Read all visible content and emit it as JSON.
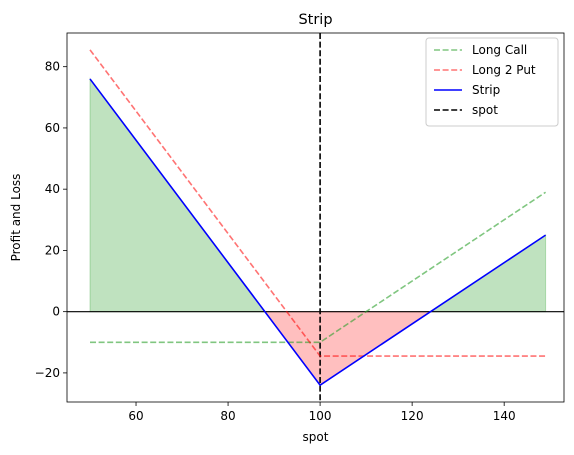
{
  "chart_data": {
    "type": "line",
    "title": "Strip",
    "xlabel": "spot",
    "ylabel": "Profit and Loss",
    "xlim": [
      45,
      153
    ],
    "ylim": [
      -29.5,
      91
    ],
    "xticks": [
      60,
      80,
      100,
      120,
      140
    ],
    "yticks": [
      -20,
      0,
      20,
      40,
      60,
      80
    ],
    "grid": false,
    "legend_position": "top-right",
    "spot": 100,
    "series": [
      {
        "name": "Long Call",
        "style": "dashed",
        "color": "#2ca02c",
        "opacity": 0.6,
        "x": [
          50,
          100,
          149
        ],
        "y": [
          -10,
          -10,
          39
        ]
      },
      {
        "name": "Long 2 Put",
        "style": "dashed",
        "color": "#ff0000",
        "opacity": 0.55,
        "x": [
          50,
          100,
          149
        ],
        "y": [
          85.5,
          -14.5,
          -14.5
        ]
      },
      {
        "name": "Strip",
        "style": "solid",
        "color": "#0000ff",
        "opacity": 1,
        "x": [
          50,
          100,
          149
        ],
        "y": [
          76,
          -24,
          25
        ]
      }
    ],
    "reference_lines": [
      {
        "name": "spot",
        "orientation": "vertical",
        "value": 100,
        "style": "dashed",
        "color": "#000000"
      },
      {
        "orientation": "horizontal",
        "value": 0,
        "style": "solid",
        "color": "#000000"
      }
    ],
    "fills": {
      "positive_color": "#2ca02c",
      "negative_color": "#ff0000"
    },
    "legend": [
      "Long Call",
      "Long 2 Put",
      "Strip",
      "spot"
    ]
  }
}
